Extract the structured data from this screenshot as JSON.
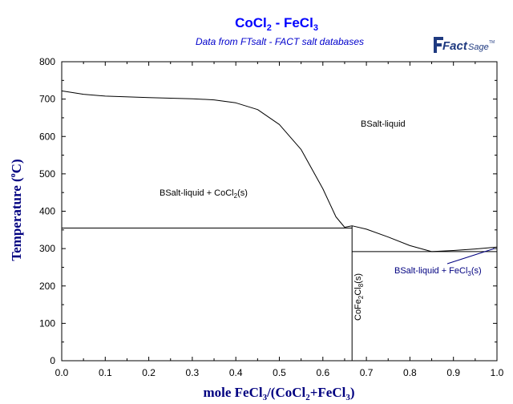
{
  "header": {
    "title_main": "CoCl",
    "title_sub1": "2",
    "title_mid": " - FeCl",
    "title_sub2": "3",
    "subtitle": "Data from FTsalt - FACT salt databases"
  },
  "logo": {
    "text_a": "Fact",
    "text_b": "Sage",
    "mark": "TM"
  },
  "axes": {
    "y_label": "Temperature (°C)",
    "y_label_pre": "Temperature (",
    "y_label_deg": "o",
    "y_label_post": "C)",
    "x_label_parts": [
      "mole FeCl",
      "3",
      "/(CoCl",
      "2",
      "+FeCl",
      "3",
      ")"
    ],
    "x_ticks": [
      "0.0",
      "0.1",
      "0.2",
      "0.3",
      "0.4",
      "0.5",
      "0.6",
      "0.7",
      "0.8",
      "0.9",
      "1.0"
    ],
    "y_ticks": [
      "0",
      "100",
      "200",
      "300",
      "400",
      "500",
      "600",
      "700",
      "800"
    ],
    "x_range": [
      0,
      1
    ],
    "y_range": [
      0,
      800
    ]
  },
  "labels": {
    "liquid": "BSalt-liquid",
    "liq_cocl2_a": "BSalt-liquid + CoCl",
    "liq_cocl2_sub": "2",
    "liq_cocl2_b": "(s)",
    "liq_fecl3_a": "BSalt-liquid + FeCl",
    "liq_fecl3_sub": "3",
    "liq_fecl3_b": "(s)",
    "compound_a": "CoFe",
    "compound_sub1": "2",
    "compound_b": "Cl",
    "compound_sub2": "8",
    "compound_c": "(s)"
  },
  "colors": {
    "title": "#0000ff",
    "subtitle": "#0000cc",
    "axis_label": "#000080",
    "logo": "#1f3a80",
    "line": "#000000",
    "fecl3_label": "#000080"
  },
  "chart_data": {
    "type": "phase-diagram",
    "xlabel": "mole FeCl3/(CoCl2+FeCl3)",
    "ylabel": "Temperature (°C)",
    "xlim": [
      0,
      1
    ],
    "ylim": [
      0,
      800
    ],
    "series": [
      {
        "name": "liquidus-CoCl2",
        "x": [
          0.0,
          0.05,
          0.1,
          0.2,
          0.3,
          0.35,
          0.4,
          0.45,
          0.5,
          0.55,
          0.6,
          0.63,
          0.65
        ],
        "y": [
          722,
          713,
          708,
          704,
          701,
          698,
          690,
          672,
          632,
          565,
          460,
          385,
          357
        ]
      },
      {
        "name": "liquidus-CoFe2Cl8",
        "x": [
          0.65,
          0.667,
          0.7,
          0.75,
          0.8,
          0.85
        ],
        "y": [
          357,
          361,
          352,
          331,
          308,
          292
        ]
      },
      {
        "name": "liquidus-FeCl3",
        "x": [
          0.85,
          0.9,
          0.95,
          1.0
        ],
        "y": [
          292,
          295,
          299,
          304
        ]
      },
      {
        "name": "eutectic-1",
        "x": [
          0.0,
          0.667
        ],
        "y": [
          355,
          355
        ]
      },
      {
        "name": "eutectic-2",
        "x": [
          0.667,
          1.0
        ],
        "y": [
          292,
          292
        ]
      },
      {
        "name": "compound-CoFe2Cl8",
        "x": [
          0.667,
          0.667
        ],
        "y": [
          0,
          361
        ]
      }
    ]
  }
}
